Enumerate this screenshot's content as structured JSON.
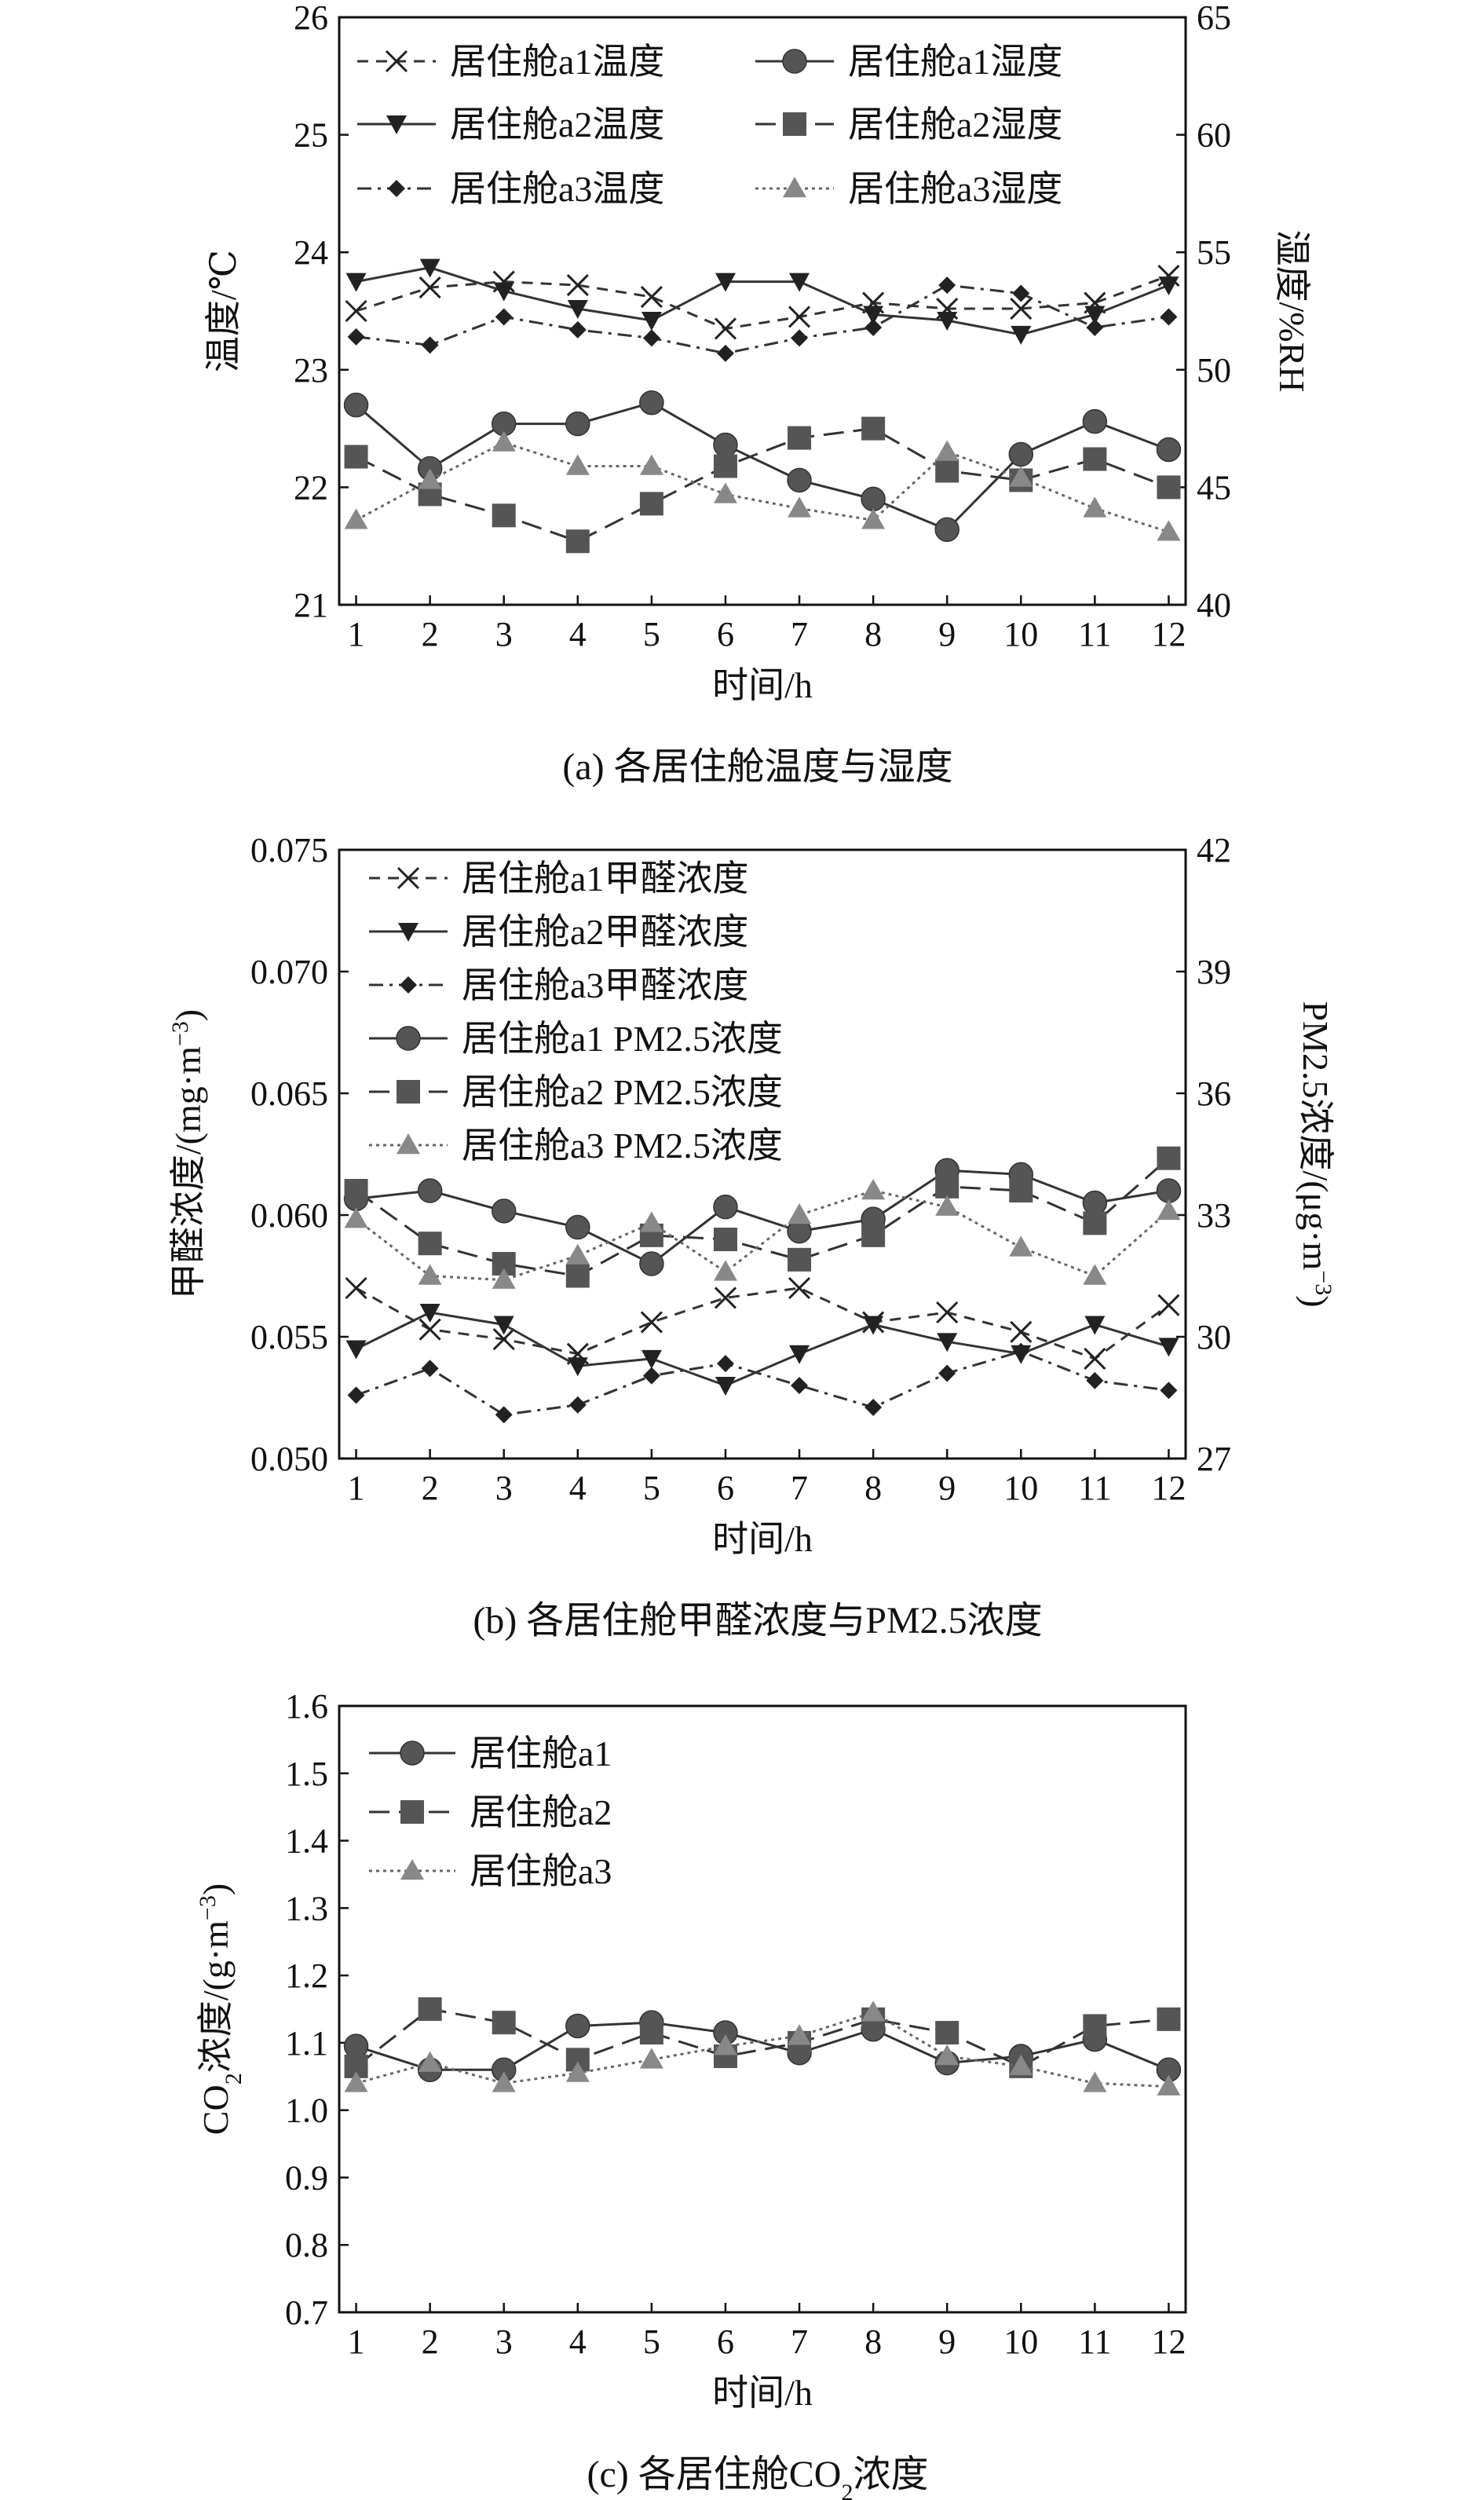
{
  "chart_data": [
    {
      "type": "line",
      "caption": "(a) 各居住舱温度与湿度",
      "xlabel": "时间/h",
      "ylabel": "温度/℃",
      "ylabel2": "湿度/%RH",
      "x": [
        1,
        2,
        3,
        4,
        5,
        6,
        7,
        8,
        9,
        10,
        11,
        12
      ],
      "ylim": [
        21,
        26
      ],
      "yticks": [
        "21",
        "22",
        "23",
        "24",
        "25",
        "26"
      ],
      "ylim2": [
        40,
        65
      ],
      "yticks2": [
        "40",
        "45",
        "50",
        "55",
        "60",
        "65"
      ],
      "grid": false,
      "legend_position": "top",
      "series": [
        {
          "name": "居住舱a1温度",
          "axis": "left",
          "marker": "x",
          "dash": "dash",
          "color": "#333333",
          "values": [
            23.5,
            23.7,
            23.75,
            23.72,
            23.62,
            23.35,
            23.45,
            23.57,
            23.52,
            23.52,
            23.57,
            23.8
          ]
        },
        {
          "name": "居住舱a1湿度",
          "axis": "right",
          "marker": "circle",
          "dash": "solid",
          "color": "#555555",
          "values": [
            48.5,
            45.8,
            47.7,
            47.7,
            48.6,
            46.8,
            45.3,
            44.5,
            43.2,
            46.4,
            47.8,
            46.6
          ]
        },
        {
          "name": "居住舱a2温度",
          "axis": "left",
          "marker": "tri-down",
          "dash": "solid",
          "color": "#333333",
          "values": [
            23.75,
            23.87,
            23.67,
            23.52,
            23.42,
            23.75,
            23.75,
            23.47,
            23.42,
            23.3,
            23.47,
            23.72
          ]
        },
        {
          "name": "居住舱a2湿度",
          "axis": "right",
          "marker": "square",
          "dash": "longdash",
          "color": "#555555",
          "values": [
            46.3,
            44.7,
            43.8,
            42.7,
            44.3,
            45.9,
            47.1,
            47.5,
            45.7,
            45.3,
            46.2,
            45.0
          ]
        },
        {
          "name": "居住舱a3温度",
          "axis": "left",
          "marker": "diamond",
          "dash": "dashdot",
          "color": "#333333",
          "values": [
            23.28,
            23.21,
            23.45,
            23.34,
            23.27,
            23.14,
            23.27,
            23.36,
            23.72,
            23.65,
            23.36,
            23.45
          ]
        },
        {
          "name": "居住舱a3湿度",
          "axis": "right",
          "marker": "triangle",
          "dash": "dot",
          "color": "#888888",
          "values": [
            43.6,
            45.3,
            46.9,
            45.9,
            45.9,
            44.7,
            44.1,
            43.6,
            46.5,
            45.4,
            44.1,
            43.1
          ]
        }
      ]
    },
    {
      "type": "line",
      "caption": "(b) 各居住舱甲醛浓度与PM2.5浓度",
      "xlabel": "时间/h",
      "ylabel": "甲醛浓度/(mg·m⁻³)",
      "ylabel2": "PM2.5浓度/(μg·m⁻³)",
      "x": [
        1,
        2,
        3,
        4,
        5,
        6,
        7,
        8,
        9,
        10,
        11,
        12
      ],
      "ylim": [
        0.05,
        0.075
      ],
      "yticks": [
        "0.050",
        "0.055",
        "0.060",
        "0.065",
        "0.070",
        "0.075"
      ],
      "ylim2": [
        27,
        42
      ],
      "yticks2": [
        "27",
        "30",
        "33",
        "36",
        "39",
        "42"
      ],
      "grid": false,
      "legend_position": "top-left",
      "series": [
        {
          "name": "居住舱a1甲醛浓度",
          "axis": "left",
          "marker": "x",
          "dash": "dash",
          "color": "#333333",
          "values": [
            0.057,
            0.0553,
            0.0549,
            0.0543,
            0.0556,
            0.0566,
            0.057,
            0.0556,
            0.056,
            0.0552,
            0.0541,
            0.0563
          ]
        },
        {
          "name": "居住舱a2甲醛浓度",
          "axis": "left",
          "marker": "tri-down",
          "dash": "solid",
          "color": "#333333",
          "values": [
            0.0545,
            0.056,
            0.0555,
            0.0538,
            0.0541,
            0.053,
            0.0543,
            0.0555,
            0.0548,
            0.0543,
            0.0555,
            0.0546
          ]
        },
        {
          "name": "居住舱a3甲醛浓度",
          "axis": "left",
          "marker": "diamond",
          "dash": "dashdot",
          "color": "#333333",
          "values": [
            0.0526,
            0.0537,
            0.0518,
            0.0522,
            0.0534,
            0.0539,
            0.053,
            0.0521,
            0.0535,
            0.0544,
            0.0532,
            0.0528
          ]
        },
        {
          "name": "居住舱a1 PM2.5浓度",
          "axis": "right",
          "marker": "circle",
          "dash": "solid",
          "color": "#555555",
          "values": [
            33.4,
            33.6,
            33.1,
            32.7,
            31.8,
            33.2,
            32.6,
            32.9,
            34.1,
            34.0,
            33.3,
            33.6
          ]
        },
        {
          "name": "居住舱a2 PM2.5浓度",
          "axis": "right",
          "marker": "square",
          "dash": "longdash",
          "color": "#555555",
          "values": [
            33.6,
            32.3,
            31.8,
            31.5,
            32.5,
            32.4,
            31.9,
            32.5,
            33.7,
            33.6,
            32.8,
            34.4
          ]
        },
        {
          "name": "居住舱a3 PM2.5浓度",
          "axis": "right",
          "marker": "triangle",
          "dash": "dot",
          "color": "#888888",
          "values": [
            32.9,
            31.5,
            31.4,
            32.0,
            32.8,
            31.6,
            33.0,
            33.6,
            33.2,
            32.2,
            31.5,
            33.1
          ]
        }
      ]
    },
    {
      "type": "line",
      "caption": "(c) 各居住舱CO₂浓度",
      "xlabel": "时间/h",
      "ylabel": "CO₂浓度/(g·m⁻³)",
      "x": [
        1,
        2,
        3,
        4,
        5,
        6,
        7,
        8,
        9,
        10,
        11,
        12
      ],
      "ylim": [
        0.7,
        1.6
      ],
      "yticks": [
        "0.7",
        "0.8",
        "0.9",
        "1.0",
        "1.1",
        "1.2",
        "1.3",
        "1.4",
        "1.5",
        "1.6"
      ],
      "grid": false,
      "legend_position": "top-left",
      "series": [
        {
          "name": "居住舱a1",
          "axis": "left",
          "marker": "circle",
          "dash": "solid",
          "color": "#555555",
          "values": [
            1.095,
            1.06,
            1.06,
            1.125,
            1.13,
            1.115,
            1.085,
            1.12,
            1.07,
            1.08,
            1.105,
            1.06
          ]
        },
        {
          "name": "居住舱a2",
          "axis": "left",
          "marker": "square",
          "dash": "longdash",
          "color": "#555555",
          "values": [
            1.065,
            1.15,
            1.13,
            1.075,
            1.115,
            1.08,
            1.1,
            1.135,
            1.115,
            1.065,
            1.125,
            1.135
          ]
        },
        {
          "name": "居住舱a3",
          "axis": "left",
          "marker": "triangle",
          "dash": "dot",
          "color": "#888888",
          "values": [
            1.04,
            1.07,
            1.04,
            1.055,
            1.075,
            1.095,
            1.11,
            1.145,
            1.08,
            1.065,
            1.04,
            1.035
          ]
        }
      ]
    }
  ]
}
